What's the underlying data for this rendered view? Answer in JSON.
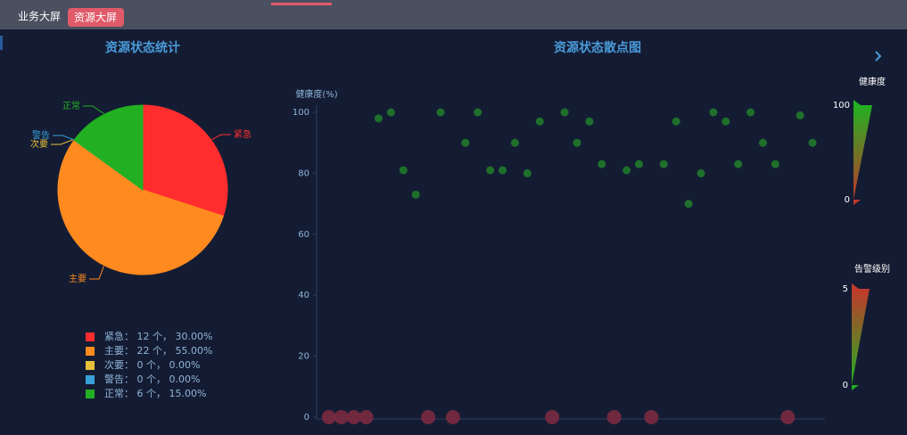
{
  "tabs": [
    "业务大屏",
    "资源大屏"
  ],
  "chart_data": [
    {
      "type": "pie",
      "title": "资源状态统计",
      "categories": [
        "紧急",
        "主要",
        "次要",
        "警告",
        "正常"
      ],
      "values": [
        30,
        55,
        0,
        0,
        15
      ],
      "value_labels": [
        "紧急： 12 个， 30.00%",
        "主要： 22 个， 55.00%",
        "次要： 0 个， 0.00%",
        "警告： 0 个， 0.00%",
        "正常： 6 个， 15.00%"
      ],
      "colors": [
        "#ff2d2d",
        "#ff8a1f",
        "#e6c23c",
        "#3aa0d8",
        "#22b022"
      ]
    },
    {
      "type": "scatter",
      "title": "资源状态散点图",
      "y_label": "健康度(%)",
      "xlim": [
        -1,
        40
      ],
      "ylim": [
        0,
        100
      ],
      "yticks": [
        0,
        20,
        40,
        60,
        80,
        100
      ],
      "series": [
        {
          "color": "#1f7a2a",
          "size": 4.5,
          "x": [
            4,
            5,
            6,
            7,
            9,
            11,
            12,
            13,
            14,
            15,
            16,
            17,
            19,
            20,
            21,
            22,
            24,
            25,
            27,
            28,
            29,
            30,
            31,
            32,
            33,
            34,
            35,
            36,
            38,
            39
          ],
          "values": [
            98,
            100,
            81,
            73,
            100,
            90,
            100,
            81,
            81,
            90,
            80,
            97,
            100,
            90,
            97,
            83,
            81,
            83,
            83,
            97,
            70,
            80,
            100,
            97,
            83,
            100,
            90,
            83,
            99,
            90
          ]
        },
        {
          "color": "#7a2a40",
          "size": 8,
          "x": [
            0,
            1,
            2,
            3,
            8,
            10,
            18,
            23,
            26,
            37
          ],
          "values": [
            0,
            0,
            0,
            0,
            0,
            0,
            0,
            0,
            0,
            0
          ]
        }
      ],
      "visual_maps": [
        {
          "title": "健康度",
          "range": [
            0,
            100
          ],
          "colors": [
            "#c0392b",
            "#22b022"
          ]
        },
        {
          "title": "告警级别",
          "range": [
            0,
            5
          ],
          "colors": [
            "#22b022",
            "#c0392b"
          ]
        }
      ]
    }
  ]
}
